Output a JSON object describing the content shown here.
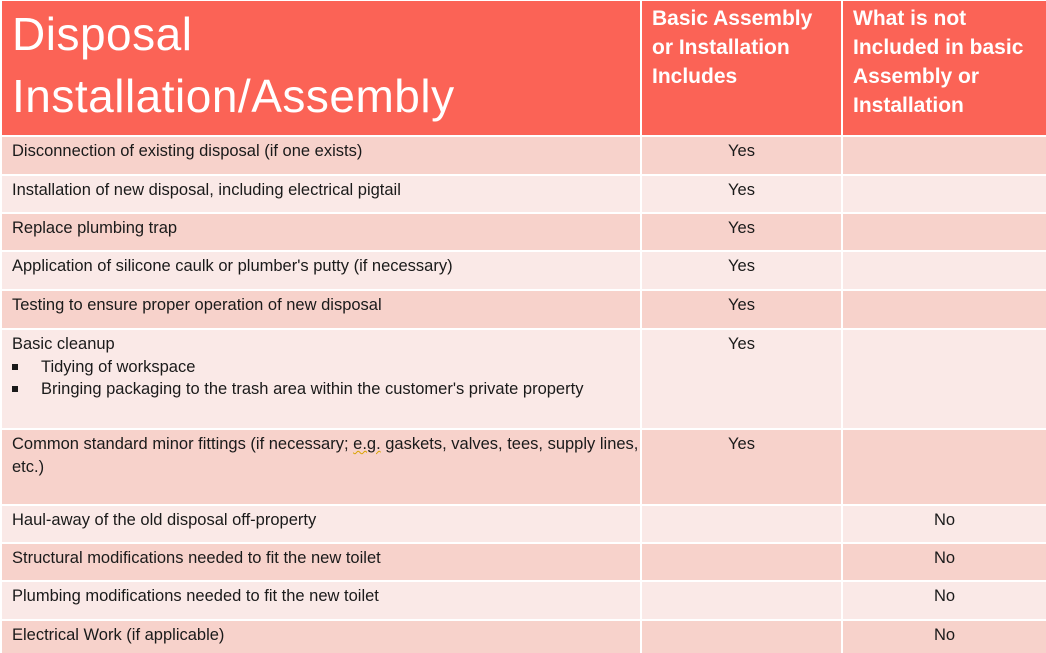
{
  "header": {
    "title": "Disposal Installation/Assembly",
    "col_included": "Basic Assembly or Installation Includes",
    "col_not_included": "What is not Included in basic Assembly or Installation"
  },
  "rows": [
    {
      "task": "Disconnection of existing disposal (if one exists)",
      "included": "Yes",
      "not_included": ""
    },
    {
      "task": "Installation of new disposal, including electrical pigtail",
      "included": "Yes",
      "not_included": ""
    },
    {
      "task": "Replace plumbing trap",
      "included": "Yes",
      "not_included": ""
    },
    {
      "task": "Application of silicone caulk or plumber's putty (if necessary)",
      "included": "Yes",
      "not_included": ""
    },
    {
      "task": "Testing to ensure proper operation of new disposal",
      "included": "Yes",
      "not_included": ""
    },
    {
      "task": "Basic cleanup",
      "bullets": [
        "Tidying of workspace",
        "Bringing packaging to the trash area within the customer's private property"
      ],
      "included": "Yes",
      "not_included": ""
    },
    {
      "task_parts": [
        "Common standard minor fittings (if necessary; ",
        "e.g.",
        " gaskets, valves, tees, supply lines,",
        "etc.)"
      ],
      "included": "Yes",
      "not_included": ""
    },
    {
      "task": "Haul-away of the old disposal off-property",
      "included": "",
      "not_included": "No"
    },
    {
      "task": "Structural modifications needed to fit the new toilet",
      "included": "",
      "not_included": "No"
    },
    {
      "task": "Plumbing modifications needed to fit the new toilet",
      "included": "",
      "not_included": "No"
    },
    {
      "task": "Electrical Work (if applicable)",
      "included": "",
      "not_included": "No"
    }
  ]
}
